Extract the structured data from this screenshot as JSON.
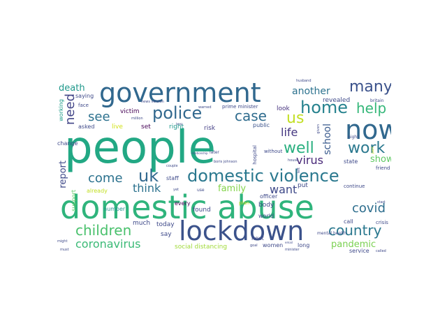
{
  "words": [
    {
      "text": "people",
      "color": "#22a884"
    },
    {
      "text": "domestic abuse",
      "color": "#2fb47c"
    },
    {
      "text": "government",
      "color": "#31688e"
    },
    {
      "text": "lockdown",
      "color": "#3b528b"
    },
    {
      "text": "now",
      "color": "#31688e"
    },
    {
      "text": "domestic violence",
      "color": "#2a788e"
    },
    {
      "text": "police",
      "color": "#31688e"
    },
    {
      "text": "case",
      "color": "#2f6c8e"
    },
    {
      "text": "home",
      "color": "#26828e"
    },
    {
      "text": "many",
      "color": "#3b528b"
    },
    {
      "text": "help",
      "color": "#35b779"
    },
    {
      "text": "us",
      "color": "#c2df23"
    },
    {
      "text": "see",
      "color": "#2c718e"
    },
    {
      "text": "need",
      "color": "#414487"
    },
    {
      "text": "come",
      "color": "#2c728e"
    },
    {
      "text": "uk",
      "color": "#31688e"
    },
    {
      "text": "well",
      "color": "#29af7f"
    },
    {
      "text": "work",
      "color": "#2a788e"
    },
    {
      "text": "life",
      "color": "#453781"
    },
    {
      "text": "school",
      "color": "#38598c"
    },
    {
      "text": "children",
      "color": "#4ac16d"
    },
    {
      "text": "country",
      "color": "#2a788e"
    },
    {
      "text": "coronavirus",
      "color": "#3aba76"
    },
    {
      "text": "covid",
      "color": "#2e6e8e"
    },
    {
      "text": "virus",
      "color": "#482878"
    },
    {
      "text": "think",
      "color": "#2c728e"
    },
    {
      "text": "family",
      "color": "#84d44b"
    },
    {
      "text": "want",
      "color": "#3e4989"
    },
    {
      "text": "report",
      "color": "#3e4989"
    },
    {
      "text": "pandemic",
      "color": "#7ad151"
    },
    {
      "text": "another",
      "color": "#2c728e"
    },
    {
      "text": "death",
      "color": "#1f988b"
    },
    {
      "text": "show",
      "color": "#5ec962"
    },
    {
      "text": "victim",
      "color": "#440154"
    },
    {
      "text": "prime minister",
      "color": "#3e4989"
    },
    {
      "text": "social distancing",
      "color": "#a0da39"
    },
    {
      "text": "live",
      "color": "#d2e21b"
    },
    {
      "text": "set",
      "color": "#440154"
    },
    {
      "text": "right",
      "color": "#1f978b"
    },
    {
      "text": "risk",
      "color": "#433e85"
    },
    {
      "text": "public",
      "color": "#3b528b"
    },
    {
      "text": "look",
      "color": "#46327e"
    },
    {
      "text": "revealed",
      "color": "#3e4989"
    },
    {
      "text": "working",
      "color": "#1e9c89"
    },
    {
      "text": "saying",
      "color": "#3e4989"
    },
    {
      "text": "face",
      "color": "#3e4989"
    },
    {
      "text": "asked",
      "color": "#3e4989"
    },
    {
      "text": "change",
      "color": "#3e4989"
    },
    {
      "text": "support",
      "color": "#5ec962"
    },
    {
      "text": "already",
      "color": "#c2df23"
    },
    {
      "text": "number",
      "color": "#21918c"
    },
    {
      "text": "much",
      "color": "#3e4989"
    },
    {
      "text": "today",
      "color": "#3e4989"
    },
    {
      "text": "say",
      "color": "#3e4989"
    },
    {
      "text": "every",
      "color": "#440154"
    },
    {
      "text": "staff",
      "color": "#3e4989"
    },
    {
      "text": "found",
      "color": "#3e4989"
    },
    {
      "text": "body",
      "color": "#3e4989"
    },
    {
      "text": "officer",
      "color": "#3e4989"
    },
    {
      "text": "world",
      "color": "#3e4989"
    },
    {
      "text": "plan",
      "color": "#c2df23"
    },
    {
      "text": "next",
      "color": "#3e4989"
    },
    {
      "text": "women",
      "color": "#3e4989"
    },
    {
      "text": "put",
      "color": "#3e4989"
    },
    {
      "text": "call",
      "color": "#3e4989"
    },
    {
      "text": "crisis",
      "color": "#3e4989"
    },
    {
      "text": "state",
      "color": "#3e4989"
    },
    {
      "text": "continue",
      "color": "#3e4989"
    },
    {
      "text": "friend",
      "color": "#3e4989"
    },
    {
      "text": "service",
      "color": "#3e4989"
    },
    {
      "text": "called",
      "color": "#3e4989"
    },
    {
      "text": "mental health",
      "color": "#3e4989"
    },
    {
      "text": "britain",
      "color": "#3e4989"
    },
    {
      "text": "night",
      "color": "#3e4989"
    },
    {
      "text": "without",
      "color": "#3e4989"
    },
    {
      "text": "hospital",
      "color": "#3e4989"
    },
    {
      "text": "long",
      "color": "#3e4989"
    },
    {
      "text": "boris johnson",
      "color": "#3e4989"
    },
    {
      "text": "husband",
      "color": "#3e4989"
    },
    {
      "text": "part",
      "color": "#c2df23"
    },
    {
      "text": "start",
      "color": "#3e4989"
    },
    {
      "text": "later",
      "color": "#3e4989"
    },
    {
      "text": "couple",
      "color": "#3e4989"
    },
    {
      "text": "news version",
      "color": "#3e4989"
    },
    {
      "text": "million",
      "color": "#3e4989"
    },
    {
      "text": "warned",
      "color": "#3e4989"
    },
    {
      "text": "given",
      "color": "#3e4989"
    },
    {
      "text": "house",
      "color": "#3e4989"
    },
    {
      "text": "use",
      "color": "#3e4989"
    },
    {
      "text": "yet",
      "color": "#3e4989"
    },
    {
      "text": "left",
      "color": "#3e4989"
    },
    {
      "text": "might",
      "color": "#3e4989"
    },
    {
      "text": "must",
      "color": "#3e4989"
    },
    {
      "text": "minister",
      "color": "#3e4989"
    },
    {
      "text": "goal",
      "color": "#3e4989"
    },
    {
      "text": "relationship",
      "color": "#3e4989"
    },
    {
      "text": "keep",
      "color": "#3e4989"
    },
    {
      "text": "email",
      "color": "#3e4989"
    }
  ]
}
